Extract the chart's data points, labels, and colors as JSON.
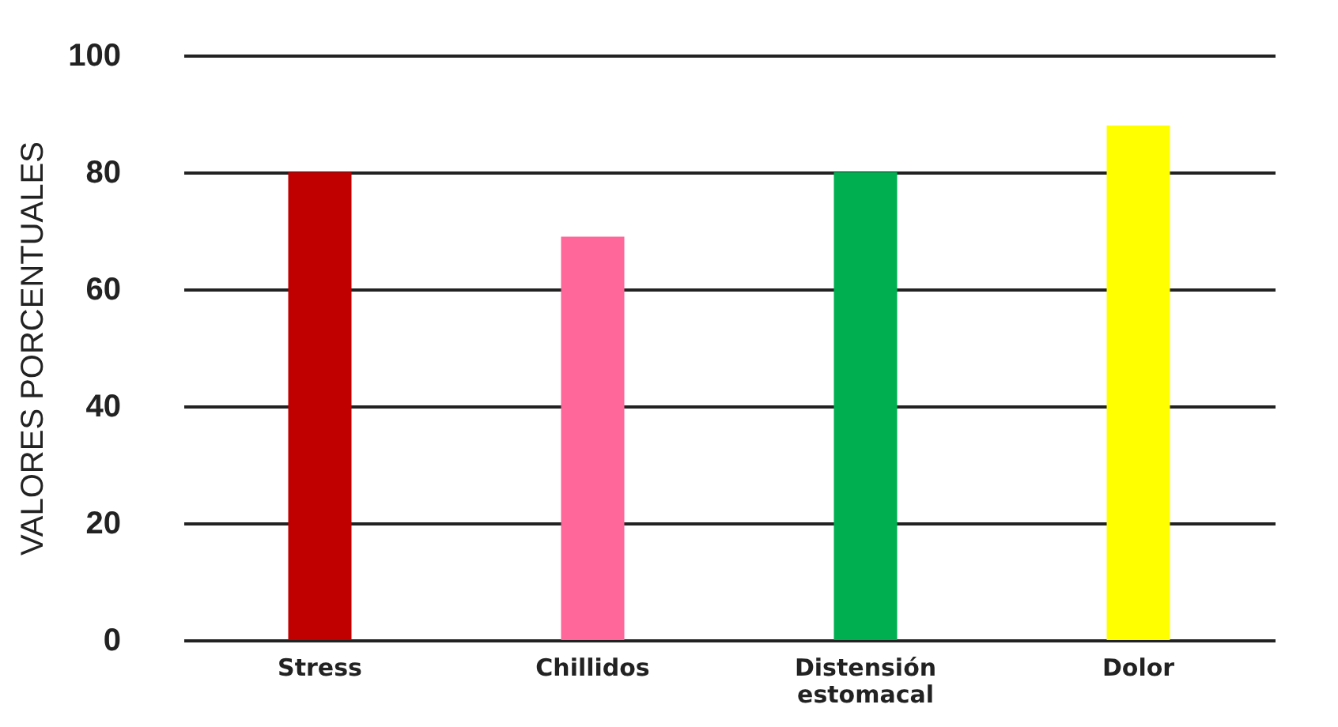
{
  "chart_data": {
    "type": "bar",
    "ylabel": "VALORES  PORCENTUALES",
    "categories": [
      "Stress",
      "Chillidos",
      "Distensión estomacal",
      "Dolor"
    ],
    "values": [
      80,
      69,
      80,
      88
    ],
    "colors": [
      "#c00000",
      "#ff6699",
      "#00b050",
      "#ffff00"
    ],
    "ylim": [
      0,
      100
    ],
    "yticks": [
      0,
      20,
      40,
      60,
      80,
      100
    ],
    "grid": "y",
    "legend": false
  }
}
